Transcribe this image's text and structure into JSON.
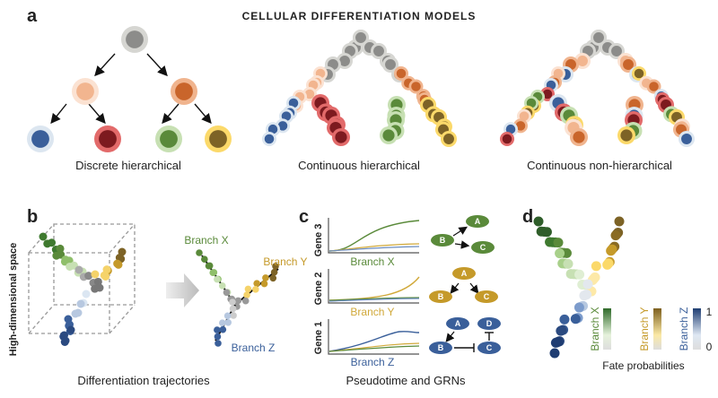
{
  "title": "CELLULAR DIFFERENTIATION MODELS",
  "panels": {
    "a": {
      "letter": "a",
      "models": [
        "Discrete hierarchical",
        "Continuous hierarchical",
        "Continuous non-hierarchical"
      ]
    },
    "b": {
      "letter": "b",
      "axis_label": "High-dimensional space",
      "branch_x": "Branch X",
      "branch_y": "Branch Y",
      "branch_z": "Branch Z",
      "caption": "Differentiation trajectories"
    },
    "c": {
      "letter": "c",
      "genes": [
        "Gene 3",
        "Gene 2",
        "Gene 1"
      ],
      "branches": [
        "Branch X",
        "Branch Y",
        "Branch Z"
      ],
      "grn_nodes": {
        "A": "A",
        "B": "B",
        "C": "C",
        "D": "D"
      },
      "caption": "Pseudotime and GRNs"
    },
    "d": {
      "letter": "d",
      "colorbars": [
        "Branch X",
        "Branch Y",
        "Branch Z"
      ],
      "scale_max": "1",
      "scale_min": "0",
      "caption": "Fate probabilities"
    }
  },
  "colors": {
    "gray": "#8c8c8a",
    "peach": "#f2b58f",
    "orange": "#c9652b",
    "blue": "#3a5f9a",
    "red": "#7d1a1f",
    "green": "#5a8a3a",
    "gold": "#c59a2a",
    "olive": "#7d6326"
  }
}
